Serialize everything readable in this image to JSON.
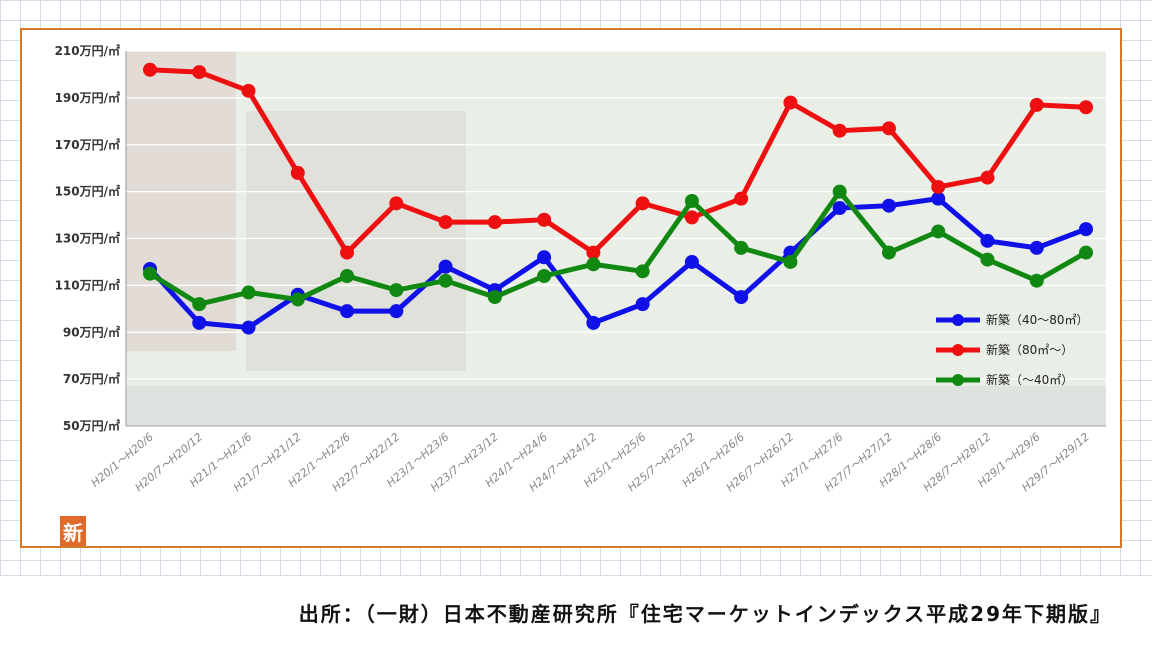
{
  "chart_data": {
    "type": "line",
    "categories": [
      "H20/1～H20/6",
      "H20/7～H20/12",
      "H21/1～H21/6",
      "H21/7～H21/12",
      "H22/1～H22/6",
      "H22/7～H22/12",
      "H23/1～H23/6",
      "H23/7～H23/12",
      "H24/1～H24/6",
      "H24/7～H24/12",
      "H25/1～H25/6",
      "H25/7～H25/12",
      "H26/1～H26/6",
      "H26/7～H26/12",
      "H27/1～H27/6",
      "H27/7～H27/12",
      "H28/1～H28/6",
      "H28/7～H28/12",
      "H29/1～H29/6",
      "H29/7～H29/12"
    ],
    "y_tick_labels": [
      "50万円/㎡",
      "70万円/㎡",
      "90万円/㎡",
      "110万円/㎡",
      "130万円/㎡",
      "150万円/㎡",
      "170万円/㎡",
      "190万円/㎡",
      "210万円/㎡"
    ],
    "y_ticks": [
      50,
      70,
      90,
      110,
      130,
      150,
      170,
      190,
      210
    ],
    "ylim": [
      50,
      210
    ],
    "grid": true,
    "legend_position": "right",
    "series": [
      {
        "name": "新築（40～80㎡）",
        "color": "#1010e8",
        "values": [
          117,
          94,
          92,
          106,
          99,
          99,
          118,
          108,
          122,
          94,
          102,
          120,
          105,
          124,
          143,
          144,
          147,
          129,
          126,
          134
        ]
      },
      {
        "name": "新築（80㎡～）",
        "color": "#ee1010",
        "values": [
          202,
          201,
          193,
          158,
          124,
          145,
          137,
          137,
          138,
          124,
          145,
          139,
          147,
          188,
          176,
          177,
          152,
          156,
          187,
          186
        ]
      },
      {
        "name": "新築（～40㎡）",
        "color": "#118811",
        "values": [
          115,
          102,
          107,
          104,
          114,
          108,
          112,
          105,
          114,
          119,
          116,
          146,
          126,
          120,
          150,
          124,
          133,
          121,
          112,
          124
        ]
      }
    ]
  },
  "logo_text": "新",
  "source": "出所：（一財）日本不動産研究所『住宅マーケットインデックス平成29年下期版』"
}
